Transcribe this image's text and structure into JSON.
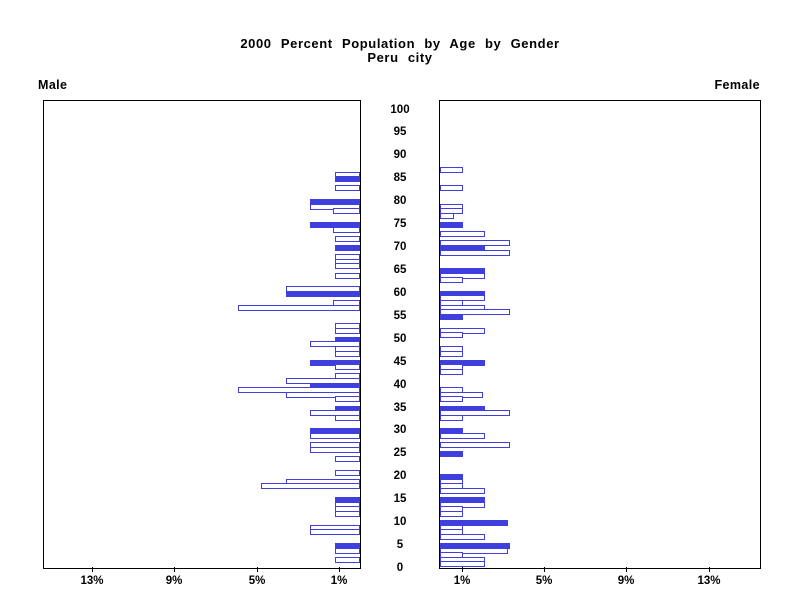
{
  "title": {
    "line1": "2000 Percent Population by Age by Gender",
    "line2": "Peru city"
  },
  "panel_labels": {
    "male": "Male",
    "female": "Female"
  },
  "axes": {
    "age_tick_labels": [
      "0",
      "5",
      "10",
      "15",
      "20",
      "25",
      "30",
      "35",
      "40",
      "45",
      "50",
      "55",
      "60",
      "65",
      "70",
      "75",
      "80",
      "85",
      "90",
      "95",
      "100"
    ],
    "age_tick_values": [
      0,
      5,
      10,
      15,
      20,
      25,
      30,
      35,
      40,
      45,
      50,
      55,
      60,
      65,
      70,
      75,
      80,
      85,
      90,
      95,
      100
    ],
    "male_pct_tick_labels": [
      "13%",
      "9%",
      "5%",
      "1%"
    ],
    "male_pct_tick_values": [
      13,
      9,
      5,
      1
    ],
    "female_pct_tick_labels": [
      "1%",
      "5%",
      "9%",
      "13%"
    ],
    "female_pct_tick_values": [
      1,
      5,
      9,
      13
    ],
    "pct_axis_max": 15.4
  },
  "colors": {
    "bar_outline": "#3f3fdd",
    "bar_fill_heaped": "#3f3fdd",
    "bar_fill_other": "#ffffff",
    "axis": "#000000",
    "background": "#ffffff"
  },
  "chart_data": {
    "type": "bar",
    "subtype": "population-pyramid",
    "title": "2000 Percent Population by Age by Gender",
    "subtitle": "Peru city",
    "unit": "percent of population",
    "x_axis": {
      "ticks_percent": [
        1,
        5,
        9,
        13
      ],
      "range_percent": [
        0,
        15.4
      ]
    },
    "y_axis": {
      "label_every": 5,
      "range_years": [
        0,
        100
      ]
    },
    "highlight_rule": "bars for ages divisible by 5 are filled blue; all other ages are white with blue outline",
    "male": [
      {
        "age": 86,
        "value": 1.2
      },
      {
        "age": 85,
        "value": 1.2
      },
      {
        "age": 83,
        "value": 1.2
      },
      {
        "age": 80,
        "value": 2.4
      },
      {
        "age": 79,
        "value": 2.4
      },
      {
        "age": 78,
        "value": 1.3
      },
      {
        "age": 75,
        "value": 2.4
      },
      {
        "age": 74,
        "value": 1.3
      },
      {
        "age": 72,
        "value": 1.2
      },
      {
        "age": 70,
        "value": 1.2
      },
      {
        "age": 68,
        "value": 1.2
      },
      {
        "age": 67,
        "value": 1.2
      },
      {
        "age": 66,
        "value": 1.2
      },
      {
        "age": 64,
        "value": 1.2
      },
      {
        "age": 61,
        "value": 3.6
      },
      {
        "age": 60,
        "value": 3.6
      },
      {
        "age": 58,
        "value": 1.3
      },
      {
        "age": 57,
        "value": 5.9
      },
      {
        "age": 53,
        "value": 1.2
      },
      {
        "age": 52,
        "value": 1.2
      },
      {
        "age": 50,
        "value": 1.2
      },
      {
        "age": 49,
        "value": 2.4
      },
      {
        "age": 48,
        "value": 1.2
      },
      {
        "age": 47,
        "value": 1.2
      },
      {
        "age": 45,
        "value": 2.4
      },
      {
        "age": 44,
        "value": 1.2
      },
      {
        "age": 42,
        "value": 1.2
      },
      {
        "age": 41,
        "value": 3.6
      },
      {
        "age": 40,
        "value": 2.4
      },
      {
        "age": 39,
        "value": 5.9
      },
      {
        "age": 38,
        "value": 3.6
      },
      {
        "age": 37,
        "value": 1.2
      },
      {
        "age": 35,
        "value": 1.2
      },
      {
        "age": 34,
        "value": 2.4
      },
      {
        "age": 33,
        "value": 1.2
      },
      {
        "age": 30,
        "value": 2.4
      },
      {
        "age": 29,
        "value": 2.4
      },
      {
        "age": 27,
        "value": 2.4
      },
      {
        "age": 26,
        "value": 2.4
      },
      {
        "age": 24,
        "value": 1.2
      },
      {
        "age": 21,
        "value": 1.2
      },
      {
        "age": 19,
        "value": 3.6
      },
      {
        "age": 18,
        "value": 4.8
      },
      {
        "age": 15,
        "value": 1.2
      },
      {
        "age": 14,
        "value": 1.2
      },
      {
        "age": 13,
        "value": 1.2
      },
      {
        "age": 12,
        "value": 1.2
      },
      {
        "age": 9,
        "value": 2.4
      },
      {
        "age": 8,
        "value": 2.4
      },
      {
        "age": 5,
        "value": 1.2
      },
      {
        "age": 4,
        "value": 1.2
      },
      {
        "age": 2,
        "value": 1.2
      }
    ],
    "female": [
      {
        "age": 87,
        "value": 1.1
      },
      {
        "age": 83,
        "value": 1.1
      },
      {
        "age": 79,
        "value": 1.1
      },
      {
        "age": 78,
        "value": 1.1
      },
      {
        "age": 77,
        "value": 0.7
      },
      {
        "age": 75,
        "value": 1.1
      },
      {
        "age": 73,
        "value": 2.2
      },
      {
        "age": 71,
        "value": 3.4
      },
      {
        "age": 70,
        "value": 2.2
      },
      {
        "age": 69,
        "value": 3.4
      },
      {
        "age": 65,
        "value": 2.2
      },
      {
        "age": 64,
        "value": 2.2
      },
      {
        "age": 63,
        "value": 1.1
      },
      {
        "age": 60,
        "value": 2.2
      },
      {
        "age": 59,
        "value": 2.2
      },
      {
        "age": 58,
        "value": 1.1
      },
      {
        "age": 57,
        "value": 2.2
      },
      {
        "age": 56,
        "value": 3.4
      },
      {
        "age": 55,
        "value": 1.1
      },
      {
        "age": 52,
        "value": 2.2
      },
      {
        "age": 51,
        "value": 1.1
      },
      {
        "age": 48,
        "value": 1.1
      },
      {
        "age": 47,
        "value": 1.1
      },
      {
        "age": 45,
        "value": 2.2
      },
      {
        "age": 44,
        "value": 1.1
      },
      {
        "age": 43,
        "value": 1.1
      },
      {
        "age": 39,
        "value": 1.1
      },
      {
        "age": 38,
        "value": 2.1
      },
      {
        "age": 37,
        "value": 1.1
      },
      {
        "age": 35,
        "value": 2.2
      },
      {
        "age": 34,
        "value": 3.4
      },
      {
        "age": 33,
        "value": 1.1
      },
      {
        "age": 30,
        "value": 1.1
      },
      {
        "age": 29,
        "value": 2.2
      },
      {
        "age": 27,
        "value": 3.4
      },
      {
        "age": 25,
        "value": 1.1
      },
      {
        "age": 20,
        "value": 1.1
      },
      {
        "age": 19,
        "value": 1.1
      },
      {
        "age": 18,
        "value": 1.1
      },
      {
        "age": 17,
        "value": 2.2
      },
      {
        "age": 15,
        "value": 2.2
      },
      {
        "age": 14,
        "value": 2.2
      },
      {
        "age": 13,
        "value": 1.1
      },
      {
        "age": 12,
        "value": 1.1
      },
      {
        "age": 10,
        "value": 3.3
      },
      {
        "age": 9,
        "value": 1.1
      },
      {
        "age": 8,
        "value": 1.1
      },
      {
        "age": 7,
        "value": 2.2
      },
      {
        "age": 5,
        "value": 3.4
      },
      {
        "age": 4,
        "value": 3.3
      },
      {
        "age": 3,
        "value": 1.1
      },
      {
        "age": 2,
        "value": 2.2
      },
      {
        "age": 1,
        "value": 2.2
      }
    ]
  }
}
